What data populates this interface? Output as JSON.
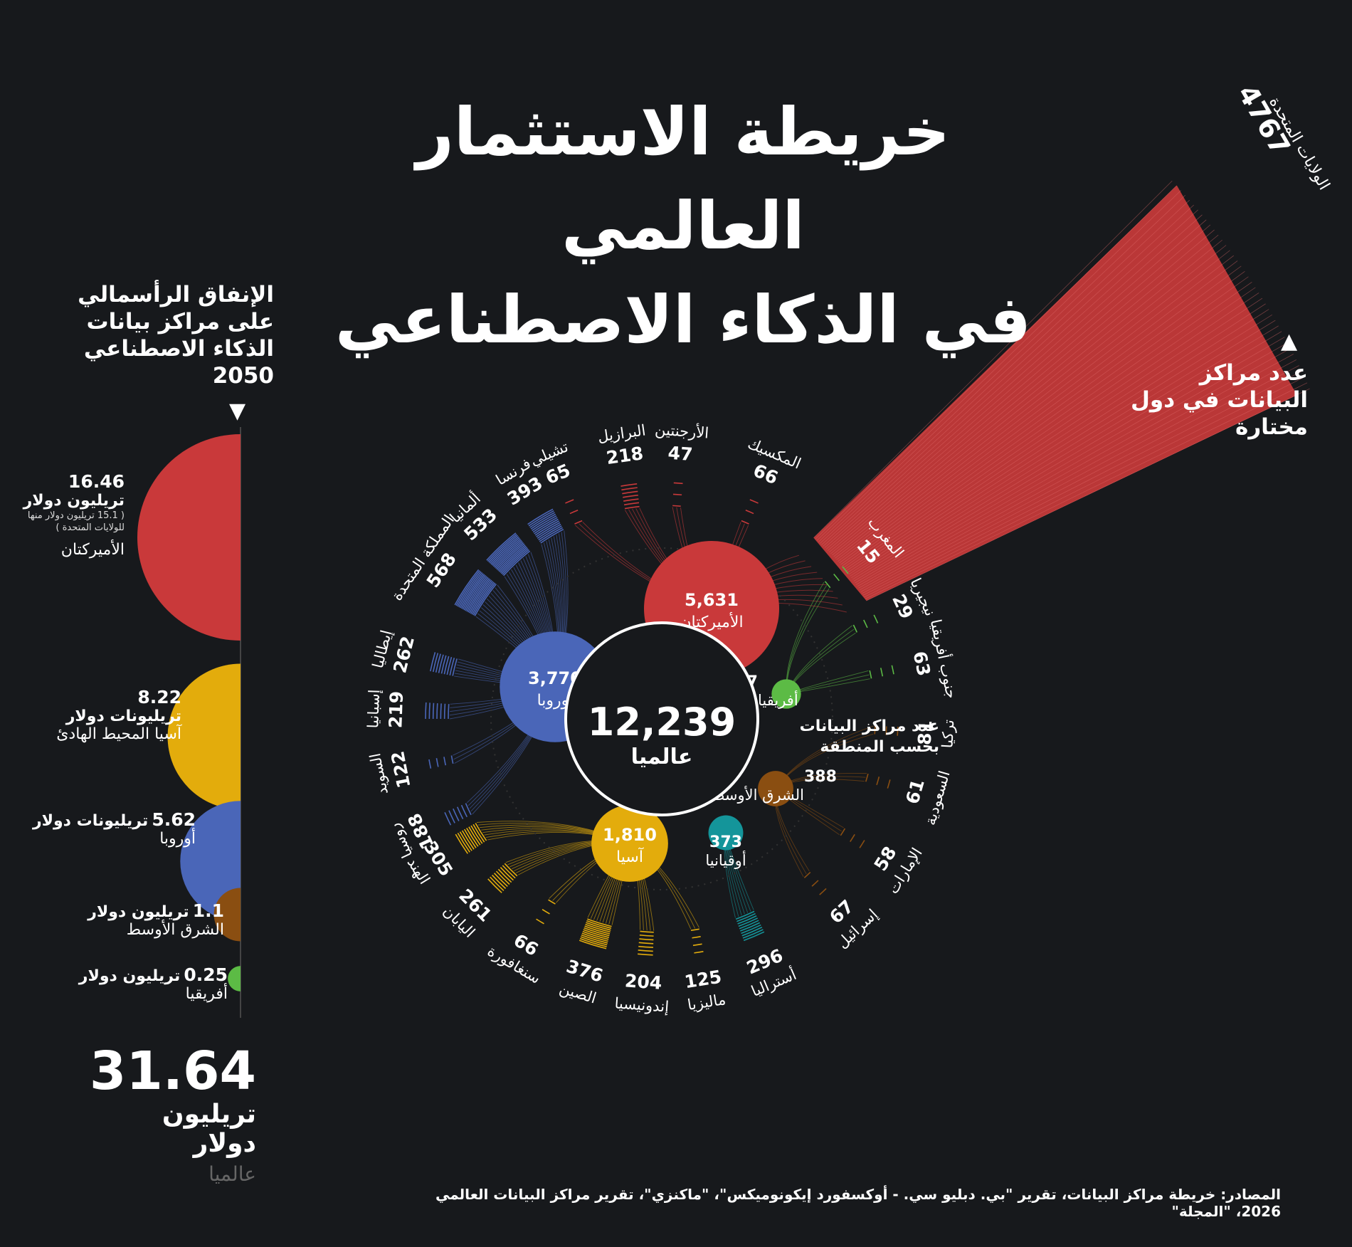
{
  "title": {
    "line1": "خريطة الاستثمار العالمي",
    "line2": "في الذكاء الاصطناعي"
  },
  "right_note": "عدد مراكز البيانات في دول مختارة",
  "legend_label": "عدد مراكز البيانات بحسب المنطقة",
  "center": {
    "value": "12,239",
    "label": "عالميا"
  },
  "spending": {
    "heading": "الإنفاق الرأسمالي على مراكز بيانات الذكاء الاصطناعي 2050",
    "items": [
      {
        "value": "16.46",
        "unit": "تريليون دولار",
        "note": "( 15.1 تريليون دولار منها للولايات المتحدة )",
        "region": "الأميركتان",
        "amount": 16.46,
        "color": "#c9393a"
      },
      {
        "value": "8.22",
        "unit": "تريليونات دولار",
        "note": "",
        "region": "آسيا المحيط الهادئ",
        "amount": 8.22,
        "color": "#e3ac0c"
      },
      {
        "value": "5.62",
        "unit": "تريليونات دولار",
        "note": "",
        "region": "أوروبا",
        "amount": 5.62,
        "color": "#4a66b8"
      },
      {
        "value": "1.1",
        "unit": "تريليون دولار",
        "note": "",
        "region": "الشرق الأوسط",
        "amount": 1.1,
        "color": "#8a4e11"
      },
      {
        "value": "0.25",
        "unit": "تريليون دولار",
        "note": "",
        "region": "أفريقيا",
        "amount": 0.25,
        "color": "#5cbb45"
      }
    ],
    "total_value": "31.64",
    "total_unit": "تريليون دولار",
    "total_scope": "عالميا"
  },
  "source": "المصادر: خريطة مراكز البيانات، تقرير \"بي. دبليو سي. - أوكسفورد إيكونوميكس\"، \"ماكنزي\"، تقرير مراكز البيانات العالمي 2026، \"المجلة\"",
  "chart_data": {
    "type": "radial-bar",
    "regions": [
      {
        "name": "الأميركتان",
        "value": 5631,
        "label": "5,631",
        "color": "#c9393a",
        "countries": [
          {
            "name": "الولايات المتحدة",
            "value": 4767
          },
          {
            "name": "المكسيك",
            "value": 66
          },
          {
            "name": "الأرجنتين",
            "value": 47
          },
          {
            "name": "البرازيل",
            "value": 218
          },
          {
            "name": "تشيلي",
            "value": 65
          }
        ]
      },
      {
        "name": "أوروبا",
        "value": 3770,
        "label": "3,770",
        "color": "#4a66b8",
        "countries": [
          {
            "name": "فرنسا",
            "value": 393
          },
          {
            "name": "ألمانيا",
            "value": 533
          },
          {
            "name": "المملكة المتحدة",
            "value": 568
          },
          {
            "name": "إيطاليا",
            "value": 262
          },
          {
            "name": "إسبانيا",
            "value": 219
          },
          {
            "name": "السويد",
            "value": 122
          },
          {
            "name": "روسيا",
            "value": 188
          }
        ]
      },
      {
        "name": "آسيا",
        "value": 1810,
        "label": "1,810",
        "color": "#e3ac0c",
        "countries": [
          {
            "name": "الهند",
            "value": 305
          },
          {
            "name": "اليابان",
            "value": 261
          },
          {
            "name": "سنغافورة",
            "value": 66
          },
          {
            "name": "الصين",
            "value": 376
          },
          {
            "name": "إندونيسيا",
            "value": 204
          },
          {
            "name": "ماليزيا",
            "value": 125
          }
        ]
      },
      {
        "name": "أوقيانيا",
        "value": 373,
        "label": "373",
        "color": "#14959a",
        "countries": [
          {
            "name": "أستراليا",
            "value": 296
          }
        ]
      },
      {
        "name": "الشرق الأوسط",
        "value": 388,
        "label": "388",
        "color": "#8a4e11",
        "countries": [
          {
            "name": "إسرائيل",
            "value": 67
          },
          {
            "name": "الإمارات",
            "value": 58
          },
          {
            "name": "السعودية",
            "value": 61
          },
          {
            "name": "تركيا",
            "value": 81
          }
        ]
      },
      {
        "name": "أفريقيا",
        "value": 267,
        "label": "267",
        "color": "#5cbb45",
        "countries": [
          {
            "name": "جنوب أفريقيا",
            "value": 63
          },
          {
            "name": "نيجيريا",
            "value": 29
          },
          {
            "name": "المغرب",
            "value": 15
          }
        ]
      }
    ]
  }
}
